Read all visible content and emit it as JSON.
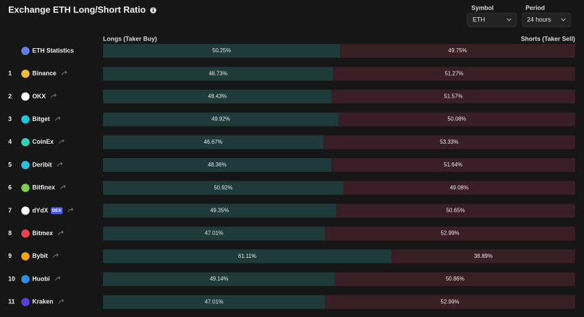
{
  "header": {
    "title": "Exchange ETH Long/Short Ratio",
    "symbol_label": "Symbol",
    "symbol_value": "ETH",
    "period_label": "Period",
    "period_value": "24 hours",
    "longs_header": "Longs (Taker Buy)",
    "shorts_header": "Shorts (Taker Sell)"
  },
  "table": {
    "rows": [
      {
        "rank": null,
        "name": "ETH Statistics",
        "long": 50.25,
        "long_label": "50.25%",
        "short": 49.75,
        "short_label": "49.75%"
      },
      {
        "rank": 1,
        "name": "Binance",
        "long": 48.73,
        "long_label": "48.73%",
        "short": 51.27,
        "short_label": "51.27%"
      },
      {
        "rank": 2,
        "name": "OKX",
        "long": 48.43,
        "long_label": "48.43%",
        "short": 51.57,
        "short_label": "51.57%"
      },
      {
        "rank": 3,
        "name": "Bitget",
        "long": 49.92,
        "long_label": "49.92%",
        "short": 50.08,
        "short_label": "50.08%"
      },
      {
        "rank": 4,
        "name": "CoinEx",
        "long": 46.67,
        "long_label": "46.67%",
        "short": 53.33,
        "short_label": "53.33%"
      },
      {
        "rank": 5,
        "name": "Deribit",
        "long": 48.36,
        "long_label": "48.36%",
        "short": 51.64,
        "short_label": "51.64%"
      },
      {
        "rank": 6,
        "name": "Bitfinex",
        "long": 50.92,
        "long_label": "50.92%",
        "short": 49.08,
        "short_label": "49.08%"
      },
      {
        "rank": 7,
        "name": "dYdX",
        "badge": "DEX",
        "long": 49.35,
        "long_label": "49.35%",
        "short": 50.65,
        "short_label": "50.65%"
      },
      {
        "rank": 8,
        "name": "Bitmex",
        "long": 47.01,
        "long_label": "47.01%",
        "short": 52.99,
        "short_label": "52.99%"
      },
      {
        "rank": 9,
        "name": "Bybit",
        "long": 61.11,
        "long_label": "61.11%",
        "short": 38.89,
        "short_label": "38.89%"
      },
      {
        "rank": 10,
        "name": "Huobi",
        "long": 49.14,
        "long_label": "49.14%",
        "short": 50.86,
        "short_label": "50.86%"
      },
      {
        "rank": 11,
        "name": "Kraken",
        "long": 47.01,
        "long_label": "47.01%",
        "short": 52.99,
        "short_label": "52.99%"
      }
    ]
  }
}
